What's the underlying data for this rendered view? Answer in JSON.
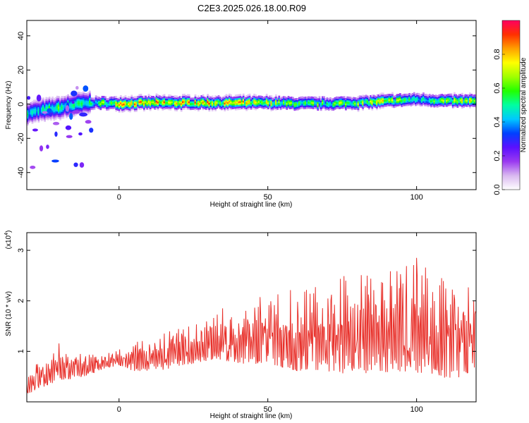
{
  "title": "C2E3.2025.026.18.00.R09",
  "chart_data": [
    {
      "type": "heatmap",
      "title": "C2E3.2025.026.18.00.R09",
      "xlabel": "Height of straight line (km)",
      "ylabel": "Frequency (Hz)",
      "xlim": [
        -31,
        120
      ],
      "ylim": [
        -50,
        49
      ],
      "xticks": [
        0,
        50,
        100
      ],
      "yticks": [
        -40,
        -20,
        0,
        20,
        40
      ],
      "colorbar": {
        "label": "Normalized spectral amplitude",
        "range": [
          0,
          1
        ],
        "ticks": [
          "0.0",
          "0.2",
          "0.4",
          "0.6",
          "0.8"
        ],
        "colormap": [
          "#ffffff",
          "#d9b8f0",
          "#9a39f0",
          "#5a10ff",
          "#0040ff",
          "#00c8ff",
          "#00ffa0",
          "#22ff00",
          "#a0ff00",
          "#ffff00",
          "#ffa000",
          "#ff3000",
          "#ff0060"
        ]
      },
      "ridge": {
        "description_points_x": [
          -31,
          -25,
          -20,
          -15,
          -10,
          0,
          10,
          20,
          30,
          40,
          50,
          60,
          70,
          80,
          90,
          100,
          110,
          120
        ],
        "frequency_hz": [
          -5,
          -3,
          -2,
          0,
          1,
          0.5,
          1,
          1,
          1,
          1,
          1,
          0.5,
          0.5,
          1,
          2,
          3,
          2,
          2
        ],
        "peak_amplitude": [
          0.55,
          0.6,
          0.7,
          0.7,
          0.6,
          0.9,
          0.95,
          0.95,
          0.95,
          0.9,
          0.85,
          0.75,
          0.7,
          0.8,
          0.85,
          0.6,
          0.8,
          0.85
        ]
      }
    },
    {
      "type": "line",
      "xlabel": "Height of straight line (km)",
      "ylabel": "SNR (10 * v/v)",
      "yscale_label": "(x10",
      "yscale_exp": "4",
      "xlim": [
        -31,
        120
      ],
      "ylim": [
        0,
        3.35
      ],
      "xticks": [
        0,
        50,
        100
      ],
      "yticks": [
        1,
        2,
        3
      ],
      "color": "#e8302a",
      "series": [
        {
          "x": [
            -31,
            -25,
            -20,
            -15,
            -10,
            -5,
            0,
            5,
            10,
            15,
            20,
            25,
            30,
            35,
            40,
            45,
            50,
            55,
            60,
            65,
            70,
            75,
            80,
            85,
            90,
            95,
            100,
            105,
            110,
            115,
            120
          ],
          "upper": [
            0.7,
            0.9,
            1.2,
            1.0,
            1.0,
            1.0,
            1.1,
            1.2,
            1.3,
            1.4,
            1.55,
            1.65,
            1.75,
            1.9,
            1.95,
            2.0,
            2.2,
            2.3,
            2.4,
            2.5,
            2.5,
            2.6,
            2.6,
            2.7,
            2.8,
            2.9,
            3.0,
            2.6,
            2.6,
            2.7,
            2.4
          ],
          "lower": [
            0.05,
            0.2,
            0.3,
            0.35,
            0.45,
            0.6,
            0.65,
            0.5,
            0.5,
            0.5,
            0.55,
            0.6,
            0.65,
            0.6,
            0.55,
            0.5,
            0.5,
            0.4,
            0.3,
            0.3,
            0.25,
            0.2,
            0.2,
            0.2,
            0.2,
            0.15,
            0.15,
            0.15,
            0.1,
            0.1,
            0.3
          ]
        }
      ]
    }
  ]
}
